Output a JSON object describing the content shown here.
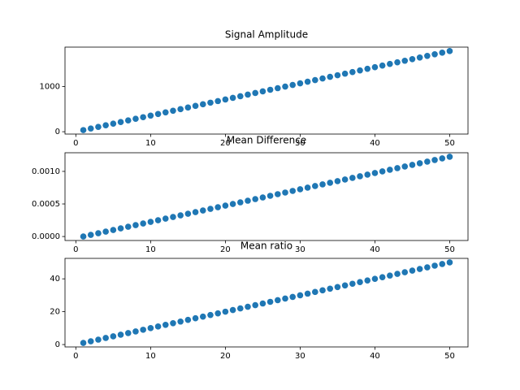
{
  "chart_data": [
    {
      "type": "scatter",
      "title": "Signal Amplitude",
      "color": "#1f77b4",
      "x": [
        1,
        2,
        3,
        4,
        5,
        6,
        7,
        8,
        9,
        10,
        11,
        12,
        13,
        14,
        15,
        16,
        17,
        18,
        19,
        20,
        21,
        22,
        23,
        24,
        25,
        26,
        27,
        28,
        29,
        30,
        31,
        32,
        33,
        34,
        35,
        36,
        37,
        38,
        39,
        40,
        41,
        42,
        43,
        44,
        45,
        46,
        47,
        48,
        49,
        50
      ],
      "values": [
        35.7,
        71.4,
        107.1,
        142.8,
        178.5,
        214.2,
        249.9,
        285.6,
        321.3,
        357,
        392.7,
        428.4,
        464.1,
        499.8,
        535.5,
        571.2,
        606.9,
        642.6,
        678.3,
        714,
        749.7,
        785.4,
        821.1,
        856.8,
        892.5,
        928.2,
        963.9,
        999.6,
        1035.3,
        1071,
        1106.7,
        1142.4,
        1178.1,
        1213.8,
        1249.5,
        1285.2,
        1320.9,
        1356.6,
        1392.3,
        1428,
        1463.7,
        1499.4,
        1535.1,
        1570.8,
        1606.5,
        1642.2,
        1677.9,
        1713.6,
        1749.3,
        1785
      ],
      "xlim": [
        -1.45,
        52.45
      ],
      "xticks": [
        0,
        10,
        20,
        30,
        40,
        50
      ],
      "ylim": [
        -52,
        1872
      ],
      "yticks": [
        0,
        1000
      ]
    },
    {
      "type": "scatter",
      "title": "Mean Difference",
      "color": "#1f77b4",
      "x": [
        1,
        2,
        3,
        4,
        5,
        6,
        7,
        8,
        9,
        10,
        11,
        12,
        13,
        14,
        15,
        16,
        17,
        18,
        19,
        20,
        21,
        22,
        23,
        24,
        25,
        26,
        27,
        28,
        29,
        30,
        31,
        32,
        33,
        34,
        35,
        36,
        37,
        38,
        39,
        40,
        41,
        42,
        43,
        44,
        45,
        46,
        47,
        48,
        49,
        50
      ],
      "values": [
        0,
        2.5e-05,
        5e-05,
        7.5e-05,
        0.0001,
        0.000125,
        0.00015,
        0.000175,
        0.0002,
        0.000225,
        0.00025,
        0.000275,
        0.0003,
        0.000325,
        0.00035,
        0.000375,
        0.0004,
        0.000425,
        0.00045,
        0.000475,
        0.0005,
        0.000525,
        0.00055,
        0.000575,
        0.0006,
        0.000625,
        0.00065,
        0.000675,
        0.0007,
        0.000725,
        0.00075,
        0.000775,
        0.0008,
        0.000825,
        0.00085,
        0.000875,
        0.0009,
        0.000925,
        0.00095,
        0.000975,
        0.001,
        0.001025,
        0.00105,
        0.001075,
        0.0011,
        0.001125,
        0.00115,
        0.001175,
        0.0012,
        0.001225
      ],
      "xlim": [
        -1.45,
        52.45
      ],
      "xticks": [
        0,
        10,
        20,
        30,
        40,
        50
      ],
      "ylim": [
        -6.13e-05,
        0.0012863
      ],
      "yticks": [
        {
          "value": 0,
          "label": "0.0000"
        },
        {
          "value": 0.0005,
          "label": "0.0005"
        },
        {
          "value": 0.001,
          "label": "0.0010"
        }
      ]
    },
    {
      "type": "scatter",
      "title": "Mean ratio",
      "color": "#1f77b4",
      "x": [
        1,
        2,
        3,
        4,
        5,
        6,
        7,
        8,
        9,
        10,
        11,
        12,
        13,
        14,
        15,
        16,
        17,
        18,
        19,
        20,
        21,
        22,
        23,
        24,
        25,
        26,
        27,
        28,
        29,
        30,
        31,
        32,
        33,
        34,
        35,
        36,
        37,
        38,
        39,
        40,
        41,
        42,
        43,
        44,
        45,
        46,
        47,
        48,
        49,
        50
      ],
      "values": [
        1,
        2,
        3,
        4,
        5,
        6,
        7,
        8,
        9,
        10,
        11,
        12,
        13,
        14,
        15,
        16,
        17,
        18,
        19,
        20,
        21,
        22,
        23,
        24,
        25,
        26,
        27,
        28,
        29,
        30,
        31,
        32,
        33,
        34,
        35,
        36,
        37,
        38,
        39,
        40,
        41,
        42,
        43,
        44,
        45,
        46,
        47,
        48,
        49,
        50
      ],
      "xlim": [
        -1.45,
        52.45
      ],
      "xticks": [
        0,
        10,
        20,
        30,
        40,
        50
      ],
      "ylim": [
        -1.45,
        52.45
      ],
      "yticks": [
        0,
        20,
        40
      ]
    }
  ]
}
